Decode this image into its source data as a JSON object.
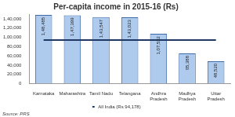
{
  "chart_data": {
    "type": "bar",
    "title": "Per-capita income in 2015-16 (Rs)",
    "categories": [
      "Karnataka",
      "Maharashtra",
      "Tamil Nadu",
      "Telangana",
      "Andhra Pradesh",
      "Madhya Pradesh",
      "Uttar Pradesh"
    ],
    "series": [
      {
        "values": [
          148485,
          147399,
          143547,
          143023,
          107532,
          65388,
          48520
        ],
        "value_labels": [
          "1,48,485",
          "1,47,399",
          "1,43,547",
          "1,43,023",
          "1,07,532",
          "65,388",
          "48,520"
        ],
        "color": "#aecbee"
      },
      {
        "name": "All India (Rs 94,178)",
        "type": "line",
        "color": "#1f3864",
        "values": [
          94178,
          94178,
          94178,
          94178,
          94178,
          94178,
          94178
        ]
      }
    ],
    "ylim": [
      0,
      150000
    ],
    "yticks": [
      0,
      {
        "value": 20000,
        "label": "20,000"
      },
      {
        "value": 40000,
        "label": "40,000"
      },
      {
        "value": 60000,
        "label": "60,000"
      },
      {
        "value": 80000,
        "label": "80,000"
      },
      {
        "value": 100000,
        "label": "1,00,000"
      },
      {
        "value": 120000,
        "label": "1,20,000"
      },
      {
        "value": 140000,
        "label": "1,40,000"
      }
    ],
    "grid": false,
    "legend": "bottom",
    "data_labels": true,
    "annotations": [
      "Source: PRS"
    ]
  }
}
